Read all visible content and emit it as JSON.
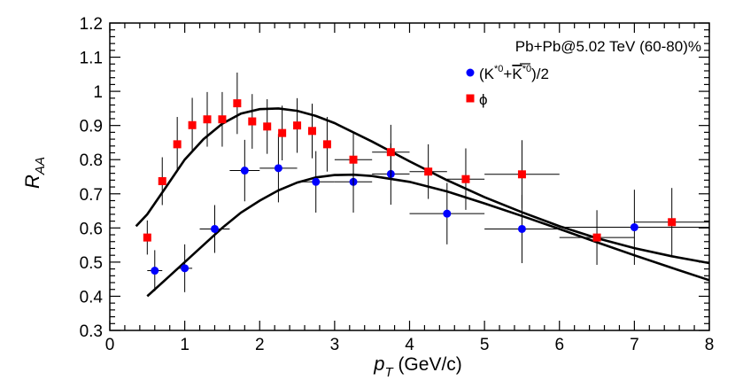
{
  "chart_data": {
    "type": "scatter",
    "title": "Pb+Pb@5.02 TeV (60-80)%",
    "xlabel": {
      "main": "p",
      "sub": "T",
      "rest": " (GeV/c)"
    },
    "ylabel": {
      "main": "R",
      "sub": "AA"
    },
    "xlim": [
      0,
      8
    ],
    "ylim": [
      0.3,
      1.2
    ],
    "xticks": [
      0,
      1,
      2,
      3,
      4,
      5,
      6,
      7,
      8
    ],
    "xtick_labels": [
      "0",
      "1",
      "2",
      "3",
      "4",
      "5",
      "6",
      "7",
      "8"
    ],
    "yticks": [
      0.3,
      0.4,
      0.5,
      0.6,
      0.7,
      0.8,
      0.9,
      1.0,
      1.1,
      1.2
    ],
    "ytick_labels": [
      "0.3",
      "0.4",
      "0.5",
      "0.6",
      "0.7",
      "0.8",
      "0.9",
      "1",
      "1.1",
      "1.2"
    ],
    "legend_position": "top-right",
    "series": [
      {
        "name": "(K*0+K*0)/2",
        "legend": {
          "pre": "(K",
          "sup1": "*0",
          "mid": "+",
          "bar": "K",
          "sup2": "*0",
          "post": ")/2"
        },
        "marker": "circle",
        "color": "#0000ff",
        "points": [
          {
            "x": 0.6,
            "y": 0.475,
            "xerr": 0.1,
            "yerr": 0.06
          },
          {
            "x": 1.0,
            "y": 0.482,
            "xerr": 0.1,
            "yerr": 0.07
          },
          {
            "x": 1.4,
            "y": 0.597,
            "xerr": 0.2,
            "yerr": 0.07
          },
          {
            "x": 1.8,
            "y": 0.768,
            "xerr": 0.2,
            "yerr": 0.09
          },
          {
            "x": 2.25,
            "y": 0.775,
            "xerr": 0.25,
            "yerr": 0.1
          },
          {
            "x": 2.75,
            "y": 0.735,
            "xerr": 0.25,
            "yerr": 0.09
          },
          {
            "x": 3.25,
            "y": 0.735,
            "xerr": 0.25,
            "yerr": 0.09
          },
          {
            "x": 3.75,
            "y": 0.758,
            "xerr": 0.25,
            "yerr": 0.09
          },
          {
            "x": 4.5,
            "y": 0.642,
            "xerr": 0.5,
            "yerr": 0.09
          },
          {
            "x": 5.5,
            "y": 0.597,
            "xerr": 0.5,
            "yerr": 0.1
          },
          {
            "x": 7.0,
            "y": 0.602,
            "xerr": 1.0,
            "yerr": 0.11
          }
        ]
      },
      {
        "name": "phi",
        "legend": {
          "pre": "ϕ"
        },
        "marker": "square",
        "color": "#ff0000",
        "points": [
          {
            "x": 0.5,
            "y": 0.572,
            "xerr": 0.05,
            "yerr": 0.05
          },
          {
            "x": 0.7,
            "y": 0.737,
            "xerr": 0.05,
            "yerr": 0.07
          },
          {
            "x": 0.9,
            "y": 0.845,
            "xerr": 0.05,
            "yerr": 0.08
          },
          {
            "x": 1.1,
            "y": 0.901,
            "xerr": 0.05,
            "yerr": 0.08
          },
          {
            "x": 1.3,
            "y": 0.918,
            "xerr": 0.05,
            "yerr": 0.08
          },
          {
            "x": 1.5,
            "y": 0.918,
            "xerr": 0.05,
            "yerr": 0.08
          },
          {
            "x": 1.7,
            "y": 0.965,
            "xerr": 0.05,
            "yerr": 0.09
          },
          {
            "x": 1.9,
            "y": 0.912,
            "xerr": 0.05,
            "yerr": 0.08
          },
          {
            "x": 2.1,
            "y": 0.897,
            "xerr": 0.05,
            "yerr": 0.08
          },
          {
            "x": 2.3,
            "y": 0.878,
            "xerr": 0.05,
            "yerr": 0.08
          },
          {
            "x": 2.5,
            "y": 0.9,
            "xerr": 0.05,
            "yerr": 0.08
          },
          {
            "x": 2.7,
            "y": 0.884,
            "xerr": 0.05,
            "yerr": 0.08
          },
          {
            "x": 2.9,
            "y": 0.845,
            "xerr": 0.05,
            "yerr": 0.08
          },
          {
            "x": 3.25,
            "y": 0.8,
            "xerr": 0.25,
            "yerr": 0.08
          },
          {
            "x": 3.75,
            "y": 0.822,
            "xerr": 0.25,
            "yerr": 0.08
          },
          {
            "x": 4.25,
            "y": 0.765,
            "xerr": 0.25,
            "yerr": 0.08
          },
          {
            "x": 4.75,
            "y": 0.743,
            "xerr": 0.25,
            "yerr": 0.09
          },
          {
            "x": 5.5,
            "y": 0.757,
            "xerr": 0.5,
            "yerr": 0.1
          },
          {
            "x": 6.5,
            "y": 0.572,
            "xerr": 0.5,
            "yerr": 0.08
          },
          {
            "x": 7.5,
            "y": 0.617,
            "xerr": 0.5,
            "yerr": 0.1
          }
        ]
      }
    ],
    "curves": [
      {
        "name": "model-curve-phi",
        "color": "#000000",
        "points": [
          [
            0.35,
            0.605
          ],
          [
            0.5,
            0.64
          ],
          [
            0.75,
            0.72
          ],
          [
            1.0,
            0.8
          ],
          [
            1.25,
            0.86
          ],
          [
            1.5,
            0.905
          ],
          [
            1.75,
            0.935
          ],
          [
            2.0,
            0.948
          ],
          [
            2.25,
            0.95
          ],
          [
            2.5,
            0.943
          ],
          [
            2.75,
            0.928
          ],
          [
            3.0,
            0.907
          ],
          [
            3.5,
            0.853
          ],
          [
            4.0,
            0.795
          ],
          [
            4.5,
            0.74
          ],
          [
            5.0,
            0.69
          ],
          [
            5.5,
            0.646
          ],
          [
            6.0,
            0.605
          ],
          [
            6.5,
            0.57
          ],
          [
            7.0,
            0.541
          ],
          [
            7.5,
            0.517
          ],
          [
            8.0,
            0.497
          ]
        ]
      },
      {
        "name": "model-curve-kstar",
        "color": "#000000",
        "points": [
          [
            0.5,
            0.4
          ],
          [
            0.75,
            0.45
          ],
          [
            1.0,
            0.5
          ],
          [
            1.25,
            0.55
          ],
          [
            1.5,
            0.6
          ],
          [
            1.75,
            0.645
          ],
          [
            2.0,
            0.68
          ],
          [
            2.25,
            0.71
          ],
          [
            2.5,
            0.733
          ],
          [
            2.75,
            0.748
          ],
          [
            3.0,
            0.755
          ],
          [
            3.25,
            0.756
          ],
          [
            3.5,
            0.752
          ],
          [
            4.0,
            0.735
          ],
          [
            4.5,
            0.707
          ],
          [
            5.0,
            0.672
          ],
          [
            5.5,
            0.635
          ],
          [
            6.0,
            0.597
          ],
          [
            6.5,
            0.558
          ],
          [
            7.0,
            0.52
          ],
          [
            7.5,
            0.483
          ],
          [
            8.0,
            0.447
          ]
        ]
      }
    ]
  }
}
